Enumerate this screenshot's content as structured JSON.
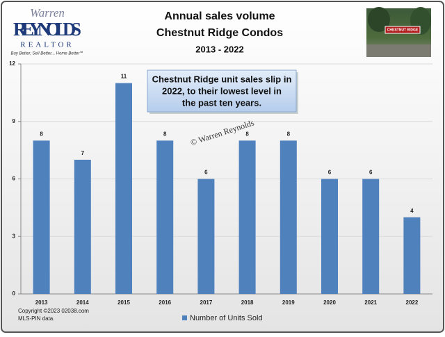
{
  "chart_data": {
    "type": "bar",
    "title": [
      "Annual sales volume",
      "Chestnut Ridge Condos",
      "2013 - 2022"
    ],
    "logo": {
      "script": "Warren",
      "name": "REYNOLDS",
      "sub": "REALTOR",
      "tagline": "Buy Better, Sell Better... Home Better℠"
    },
    "photo_sign": "CHESTNUT RIDGE",
    "annotation": [
      "Chestnut Ridge unit sales slip in",
      "2022, to their lowest level in",
      "the past ten years."
    ],
    "watermark": "© Warren Reynolds",
    "footer": [
      "Copyright ©2023  02038.com",
      "MLS-PIN data."
    ],
    "categories": [
      "2013",
      "2014",
      "2015",
      "2016",
      "2017",
      "2018",
      "2019",
      "2020",
      "2021",
      "2022"
    ],
    "series": [
      {
        "name": "Number of Units Sold",
        "color": "#4f81bd",
        "values": [
          8,
          7,
          11,
          8,
          6,
          8,
          8,
          6,
          6,
          4
        ]
      }
    ],
    "ylim": [
      0,
      12
    ],
    "yticks": [
      0,
      3,
      6,
      9,
      12
    ],
    "grid": true,
    "legend": "bottom"
  }
}
